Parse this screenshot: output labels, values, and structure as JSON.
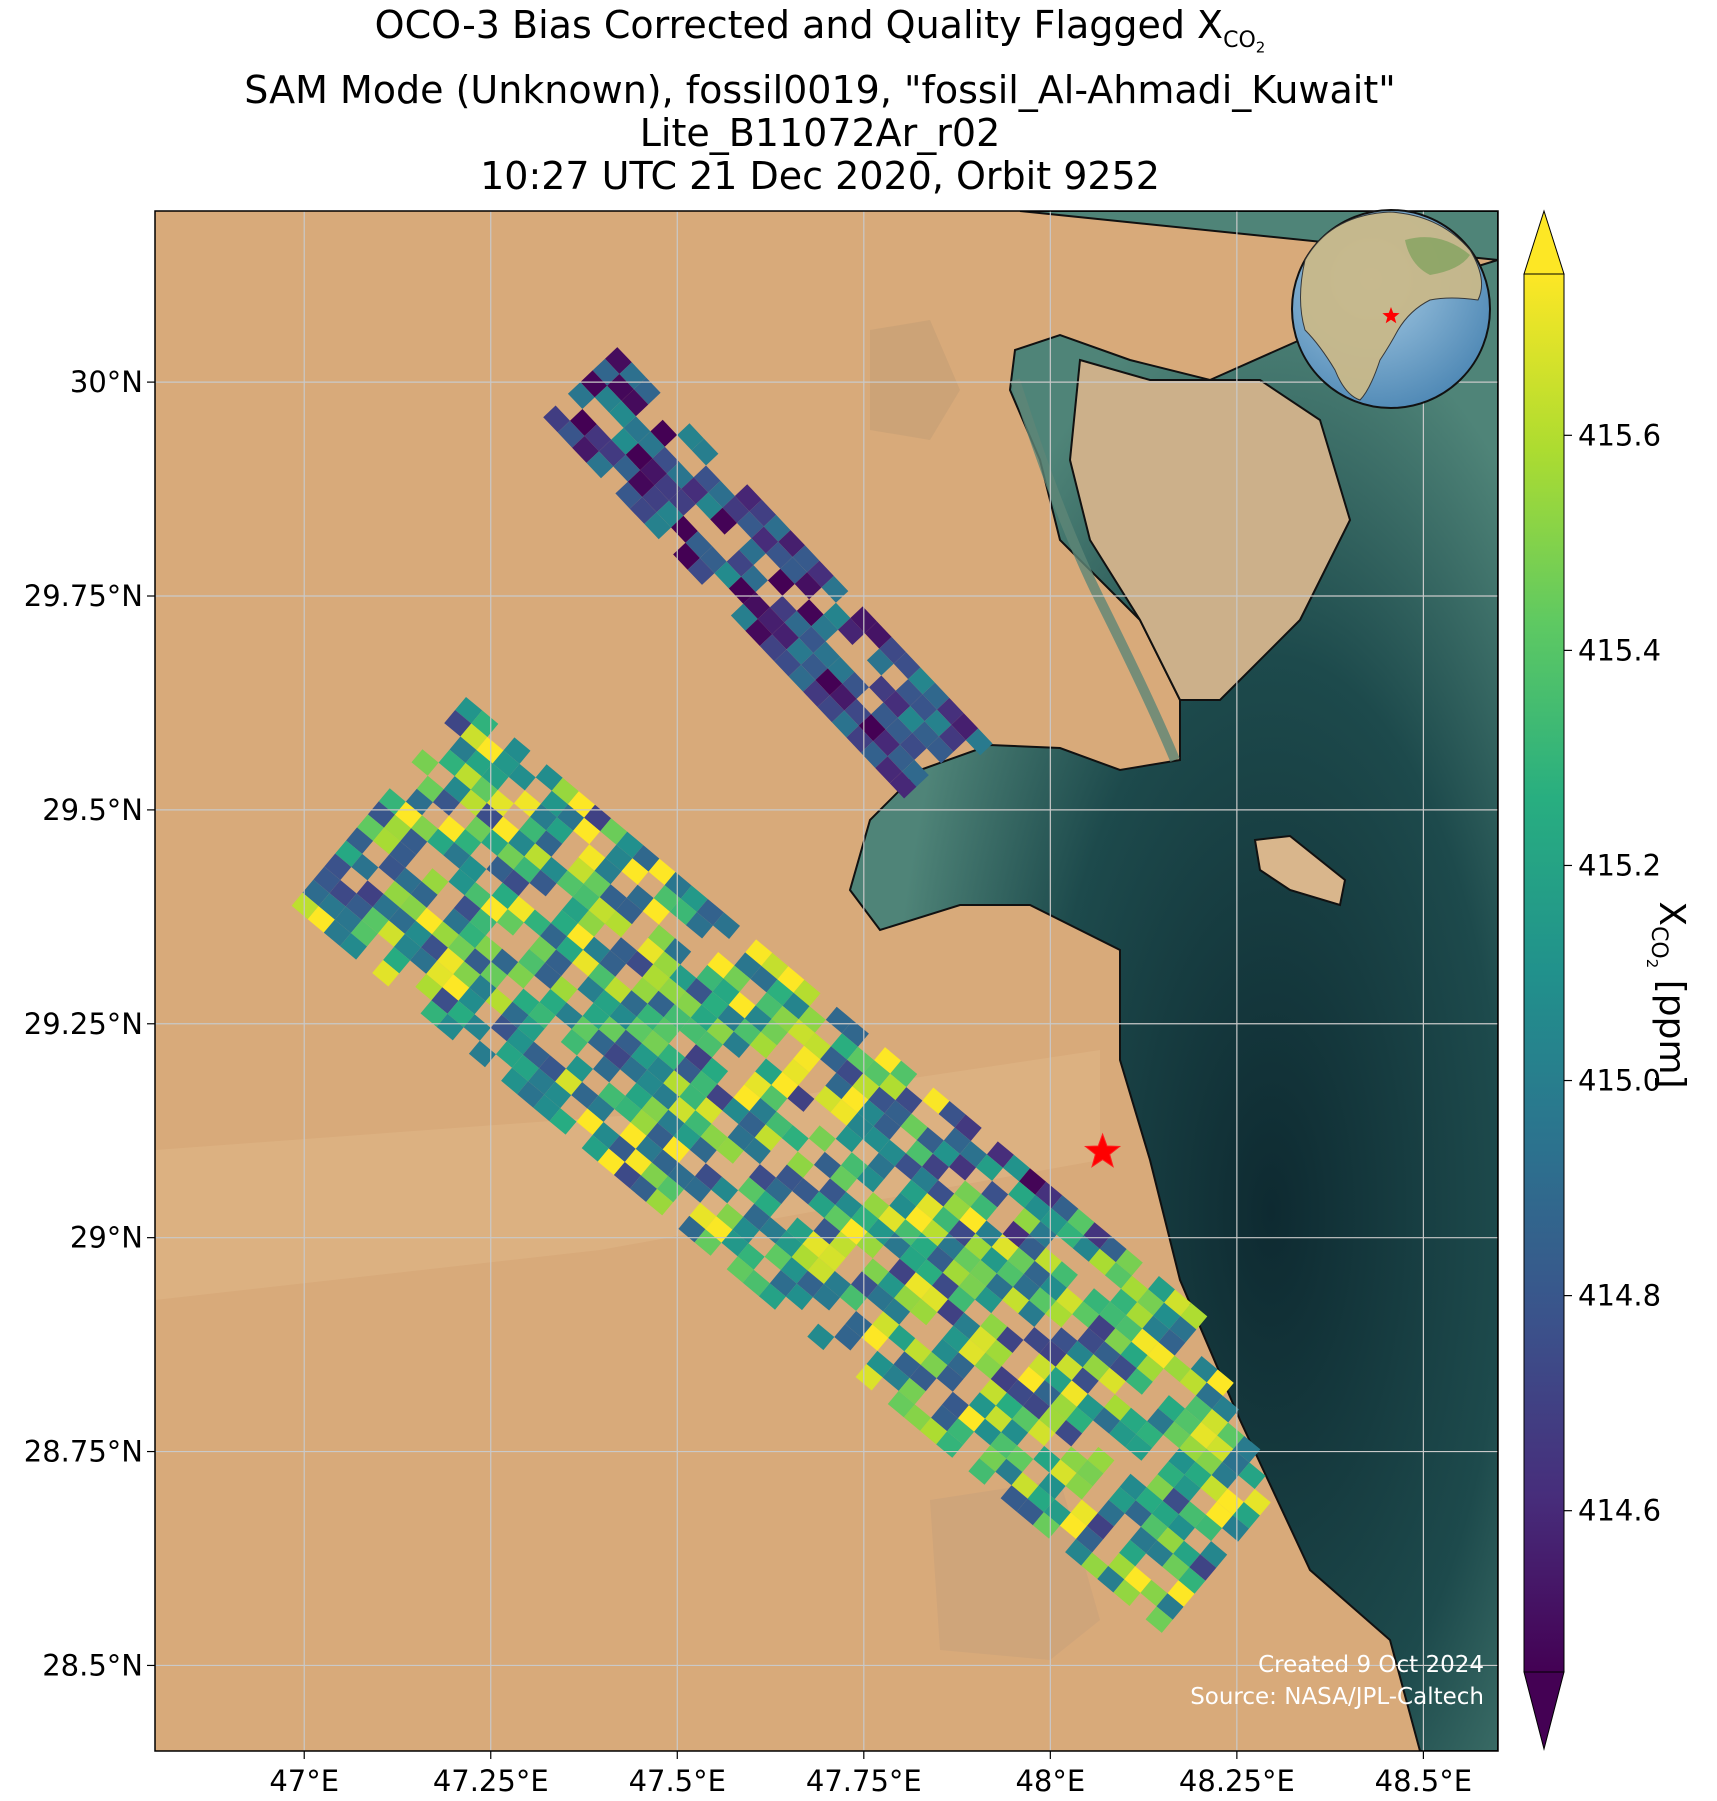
{
  "title": {
    "line1_prefix": "OCO-3 Bias Corrected and Quality Flagged X",
    "line1_sub": "CO",
    "line1_subsub": "2",
    "line2": "SAM Mode (Unknown), fossil0019, \"fossil_Al-Ahmadi_Kuwait\"",
    "line3": "Lite_B11072Ar_r02",
    "line4": "10:27 UTC 21 Dec 2020, Orbit 9252"
  },
  "credits": {
    "created": "Created 9 Oct 2024",
    "source": "Source: NASA/JPL-Caltech"
  },
  "chart_data": {
    "type": "heatmap",
    "x_ticks": [
      {
        "value": 47.0,
        "label": "47°E"
      },
      {
        "value": 47.25,
        "label": "47.25°E"
      },
      {
        "value": 47.5,
        "label": "47.5°E"
      },
      {
        "value": 47.75,
        "label": "47.75°E"
      },
      {
        "value": 48.0,
        "label": "48°E"
      },
      {
        "value": 48.25,
        "label": "48.25°E"
      },
      {
        "value": 48.5,
        "label": "48.5°E"
      }
    ],
    "y_ticks": [
      {
        "value": 30.0,
        "label": "30°N"
      },
      {
        "value": 29.75,
        "label": "29.75°N"
      },
      {
        "value": 29.5,
        "label": "29.5°N"
      },
      {
        "value": 29.25,
        "label": "29.25°N"
      },
      {
        "value": 29.0,
        "label": "29°N"
      },
      {
        "value": 28.75,
        "label": "28.75°N"
      },
      {
        "value": 28.5,
        "label": "28.5°N"
      }
    ],
    "xlim": [
      46.8,
      48.6
    ],
    "ylim": [
      28.4,
      30.2
    ],
    "grid": true,
    "target": {
      "name": "fossil_Al-Ahmadi_Kuwait",
      "lon": 48.07,
      "lat": 29.1
    },
    "colorbar": {
      "colormap": "viridis",
      "range": [
        414.45,
        415.75
      ],
      "extend": "both",
      "ticks": [
        414.6,
        414.8,
        415.0,
        415.2,
        415.4,
        415.6
      ],
      "tick_labels": [
        "414.6",
        "414.8",
        "415.0",
        "415.2",
        "415.4",
        "415.6"
      ],
      "label_main": "X",
      "label_sub": "CO",
      "label_subsub": "2",
      "label_units": " [ppm]"
    },
    "swaths": [
      {
        "name": "swath-north",
        "start": [
          47.37,
          30.0
        ],
        "end": [
          47.88,
          29.53
        ],
        "width_deg": 0.14,
        "mean_xco2": 414.75,
        "spread": 0.35
      },
      {
        "name": "swath-south",
        "start": [
          47.1,
          29.51
        ],
        "end": [
          48.28,
          28.65
        ],
        "width_deg": 0.38,
        "mean_xco2": 415.25,
        "spread": 0.55
      }
    ],
    "inset_globe": {
      "marker": "red-star",
      "marker_lon": 48.07,
      "marker_lat": 29.1
    }
  }
}
